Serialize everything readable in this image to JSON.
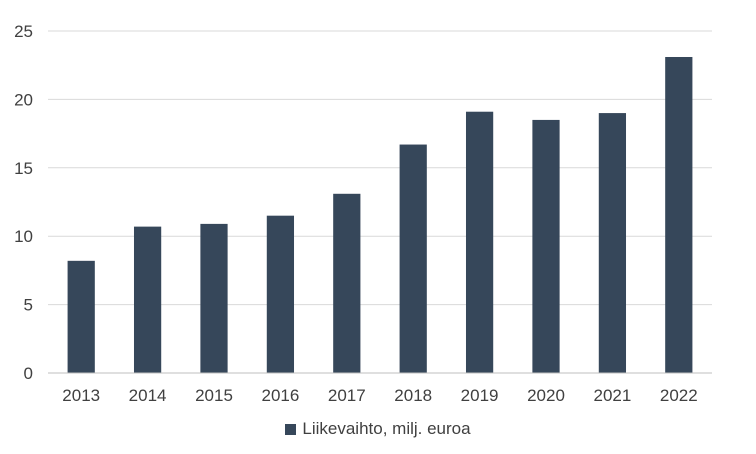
{
  "chart_data": {
    "type": "bar",
    "categories": [
      "2013",
      "2014",
      "2015",
      "2016",
      "2017",
      "2018",
      "2019",
      "2020",
      "2021",
      "2022"
    ],
    "series": [
      {
        "name": "Liikevaihto, milj. euroa",
        "values": [
          8.2,
          10.7,
          10.9,
          11.5,
          13.1,
          16.7,
          19.1,
          18.5,
          19.0,
          23.1
        ]
      }
    ],
    "ylim": [
      0,
      25
    ],
    "yticks": [
      0,
      5,
      10,
      15,
      20,
      25
    ],
    "grid": true,
    "legend_position": "bottom",
    "colors": {
      "bar": "#36475a",
      "grid": "#d9d9d9",
      "axis": "#bfbfbf",
      "text": "#404040"
    }
  }
}
